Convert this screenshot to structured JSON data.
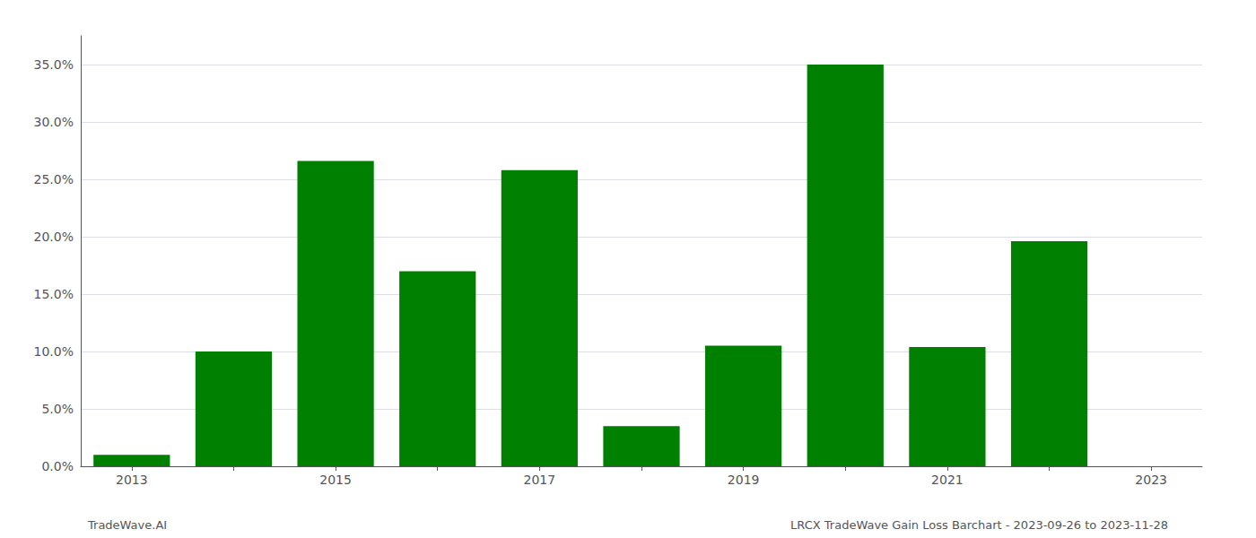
{
  "chart_data": {
    "type": "bar",
    "categories": [
      "2013",
      null,
      "2015",
      null,
      "2017",
      null,
      "2019",
      null,
      "2021",
      null,
      "2023"
    ],
    "values": [
      0.01,
      0.1,
      0.266,
      0.17,
      0.258,
      0.035,
      0.105,
      0.35,
      0.104,
      0.196,
      0.0
    ],
    "color": "#008000",
    "ylim": [
      0,
      0.375
    ],
    "yticks": [
      {
        "value": 0.0,
        "label": "0.0%"
      },
      {
        "value": 0.05,
        "label": "5.0%"
      },
      {
        "value": 0.1,
        "label": "10.0%"
      },
      {
        "value": 0.15,
        "label": "15.0%"
      },
      {
        "value": 0.2,
        "label": "20.0%"
      },
      {
        "value": 0.25,
        "label": "25.0%"
      },
      {
        "value": 0.3,
        "label": "30.0%"
      },
      {
        "value": 0.35,
        "label": "35.0%"
      }
    ],
    "grid": true,
    "annotations": [
      "TradeWave.AI",
      "LRCX TradeWave Gain Loss Barchart - 2023-09-26 to 2023-11-28"
    ]
  }
}
